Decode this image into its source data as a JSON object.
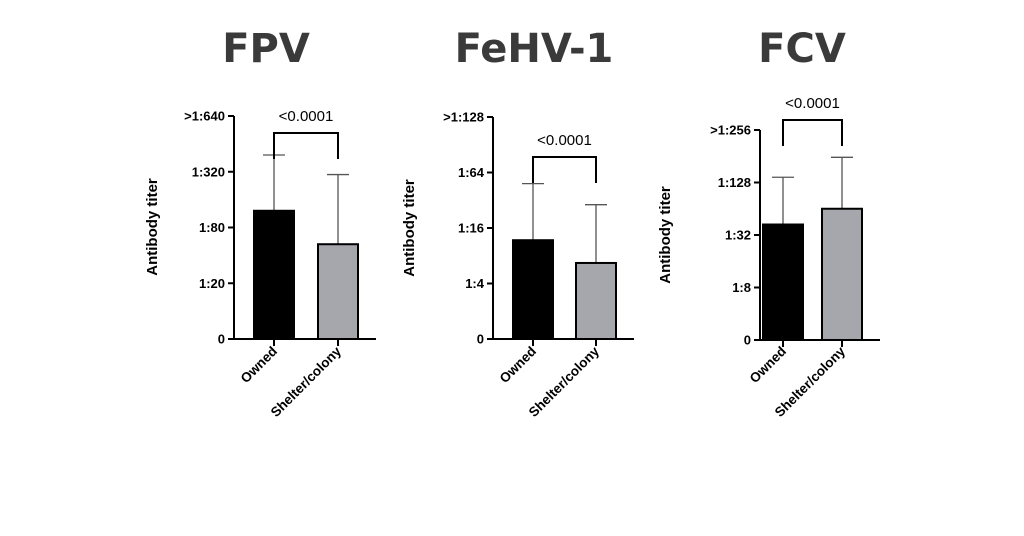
{
  "chart_data": [
    {
      "type": "bar",
      "title": "FPV",
      "ylabel": "Antibody titer",
      "categories": [
        "Owned",
        "Shelter/colony"
      ],
      "y_ticks": [
        "0",
        "1:20",
        "1:80",
        "1:320",
        ">1:640"
      ],
      "ylim": [
        0,
        4
      ],
      "values": [
        2.3,
        1.7
      ],
      "error_upper": [
        3.3,
        2.95
      ],
      "bar_colors": [
        "#000000",
        "#a6a6ad"
      ],
      "comparison": {
        "between": [
          "Owned",
          "Shelter/colony"
        ],
        "label": "<0.0001"
      }
    },
    {
      "type": "bar",
      "title": "FeHV-1",
      "ylabel": "Antibody titer",
      "categories": [
        "Owned",
        "Shelter/colony"
      ],
      "y_ticks": [
        "0",
        "1:4",
        "1:16",
        "1:64",
        ">1:128"
      ],
      "ylim": [
        0,
        4
      ],
      "values": [
        1.78,
        1.37
      ],
      "error_upper": [
        2.8,
        2.42
      ],
      "bar_colors": [
        "#000000",
        "#a6a6ad"
      ],
      "comparison": {
        "between": [
          "Owned",
          "Shelter/colony"
        ],
        "label": "<0.0001"
      }
    },
    {
      "type": "bar",
      "title": "FCV",
      "ylabel": "Antibody titer",
      "categories": [
        "Owned",
        "Shelter/colony"
      ],
      "y_ticks": [
        "0",
        "1:8",
        "1:32",
        "1:128",
        ">1:256"
      ],
      "ylim": [
        0,
        4
      ],
      "values": [
        2.2,
        2.5
      ],
      "error_upper": [
        3.1,
        3.48
      ],
      "bar_colors": [
        "#000000",
        "#a6a6ad"
      ],
      "comparison": {
        "between": [
          "Owned",
          "Shelter/colony"
        ],
        "label": "<0.0001"
      }
    }
  ]
}
